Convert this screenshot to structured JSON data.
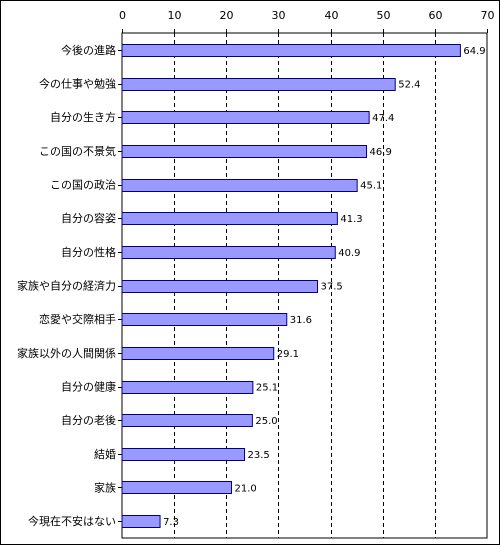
{
  "chart_data": {
    "type": "bar",
    "orientation": "horizontal",
    "title": "",
    "xlabel": "",
    "ylabel": "",
    "xlim": [
      0,
      70
    ],
    "x_ticks": [
      0,
      10,
      20,
      30,
      40,
      50,
      60,
      70
    ],
    "grid": "vertical dashed",
    "bar_color": "#9999ff",
    "bar_edge_color": "#000080",
    "categories": [
      "今後の進路",
      "今の仕事や勉強",
      "自分の生き方",
      "この国の不景気",
      "この国の政治",
      "自分の容姿",
      "自分の性格",
      "家族や自分の経済力",
      "恋愛や交際相手",
      "家族以外の人間関係",
      "自分の健康",
      "自分の老後",
      "結婚",
      "家族",
      "今現在不安はない"
    ],
    "values": [
      64.9,
      52.4,
      47.4,
      46.9,
      45.1,
      41.3,
      40.9,
      37.5,
      31.6,
      29.1,
      25.1,
      25.0,
      23.5,
      21.0,
      7.3
    ],
    "value_labels": [
      "64.9",
      "52.4",
      "47.4",
      "46.9",
      "45.1",
      "41.3",
      "40.9",
      "37.5",
      "31.6",
      "29.1",
      "25.1",
      "25.0",
      "23.5",
      "21.0",
      "7.3"
    ]
  }
}
